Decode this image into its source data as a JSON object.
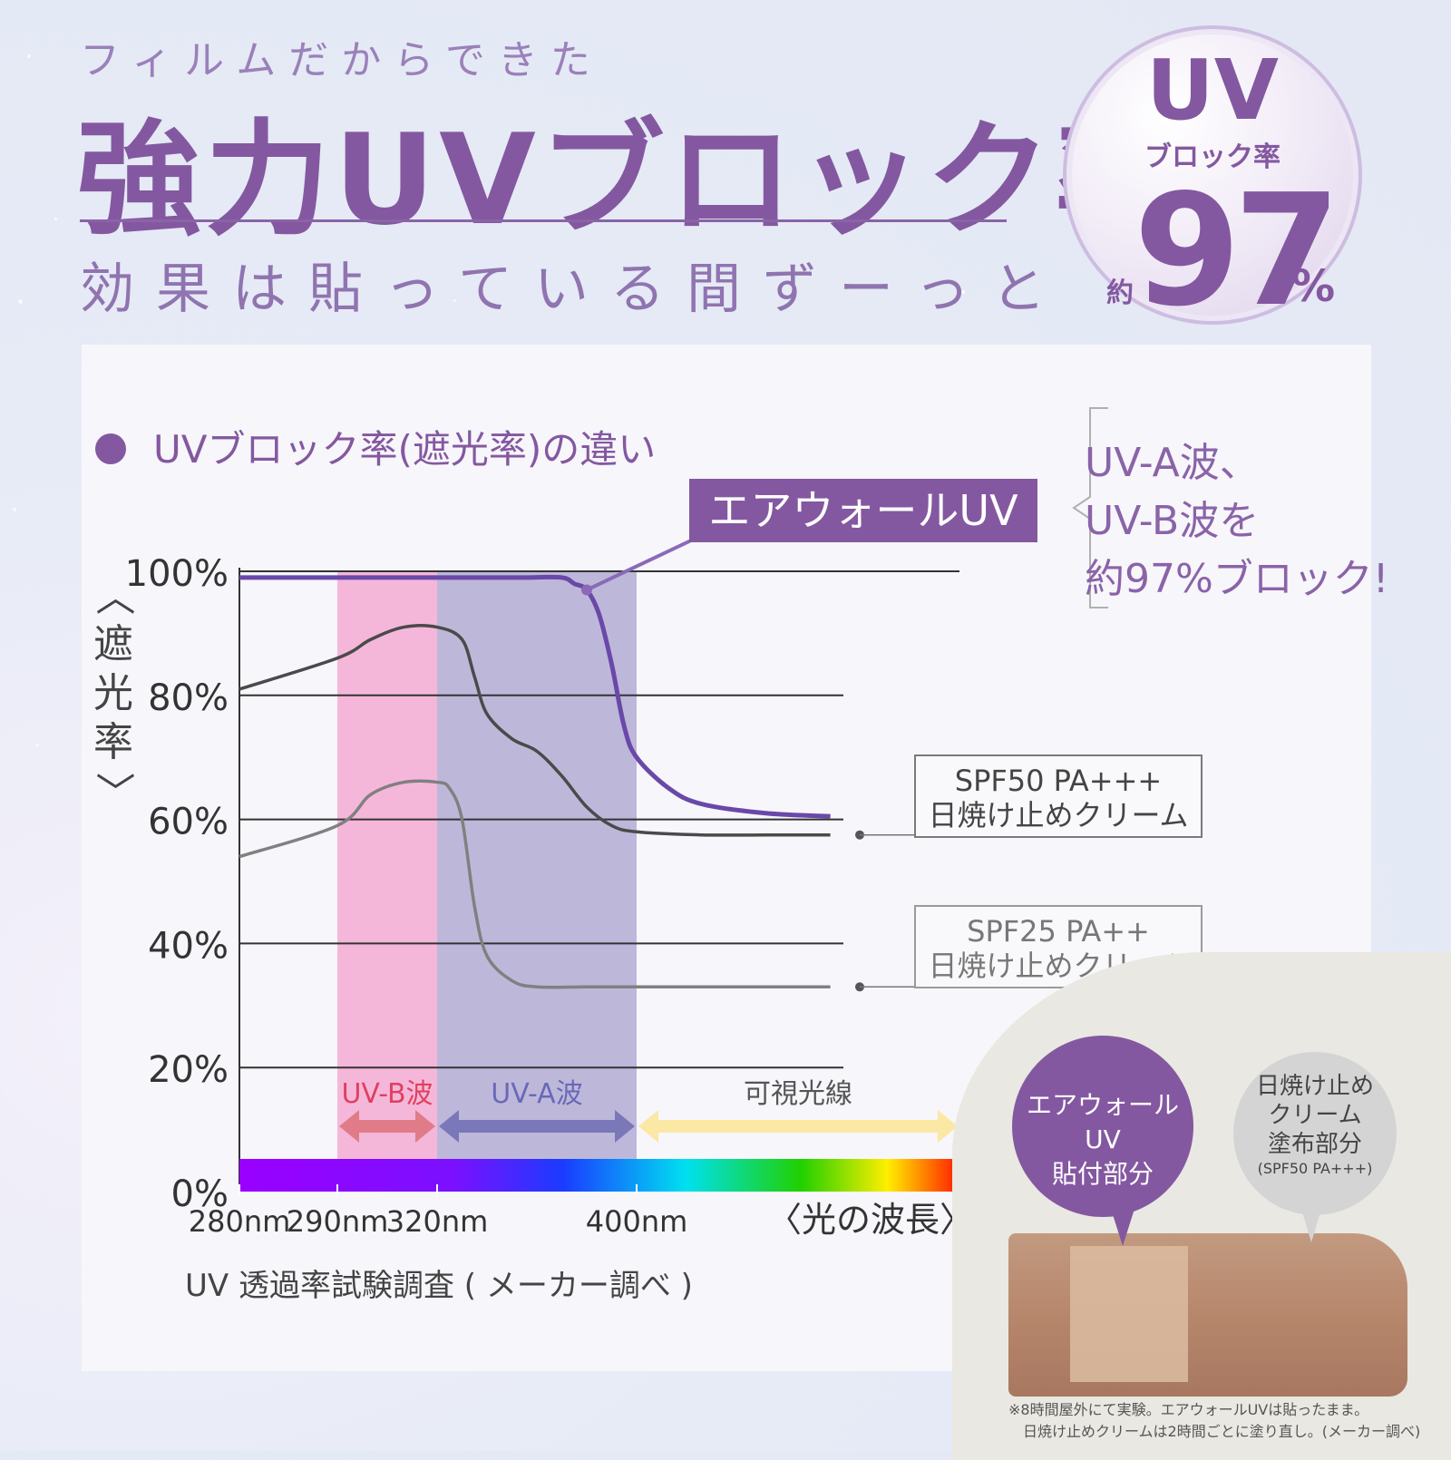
{
  "title": {
    "kicker": "フィルムだからできた",
    "headline": "強力UVブロック率",
    "sub": "効果は貼っている間ずーっと"
  },
  "badge": {
    "uv": "UV",
    "label": "ブロック率",
    "approx": "約",
    "number": "97",
    "percent": "%"
  },
  "chart_heading": "UVブロック率(遮光率)の違い",
  "airwall_tag": "エアウォールUV",
  "note": [
    "UV-A波、",
    "UV-B波を",
    "約97%ブロック!"
  ],
  "legend": {
    "spf50_line1": "SPF50 PA+++",
    "spf50_line2": "日焼け止めクリーム",
    "spf25_line1": "SPF25 PA++",
    "spf25_line2": "日焼け止めクリーム"
  },
  "y_axis_title": [
    "〈",
    "遮",
    "光",
    "率",
    "〉"
  ],
  "source": "UV 透過率試験調査 ( メーカー調べ )",
  "photo": {
    "bubble_airwall": [
      "エアウォールUV",
      "貼付部分"
    ],
    "bubble_cream": [
      "日焼け止め",
      "クリーム",
      "塗布部分"
    ],
    "bubble_cream_small": "(SPF50 PA+++)",
    "footnote": [
      "※8時間屋外にて実験。エアウォールUVは貼ったまま。",
      "　日焼け止めクリームは2時間ごとに塗り直し。(メーカー調べ)"
    ]
  },
  "colors": {
    "purple": "#8458a0",
    "airwall_line": "#6a48a8",
    "spf50_line": "#4a4a4a",
    "spf25_line": "#808080",
    "uvb_band": "#f5b7d9",
    "uva_band": "#bdb8da",
    "uvb_arrow": "#e07c88",
    "uva_arrow": "#7a78b8",
    "visible_arrow": "#fbe8a4"
  },
  "chart_data": {
    "type": "line",
    "title": "UVブロック率(遮光率)の違い",
    "xlabel": "〈光の波長〉",
    "ylabel": "〈遮光率〉",
    "y_ticks": [
      "0%",
      "20%",
      "40%",
      "60%",
      "80%",
      "100%"
    ],
    "ylim": [
      0,
      100
    ],
    "x_ticks": [
      "280nm",
      "290nm",
      "320nm",
      "400nm"
    ],
    "x_tick_values": [
      280,
      290,
      320,
      400
    ],
    "xlim": [
      280,
      500
    ],
    "bands": [
      {
        "label": "UV-B波",
        "from": 290,
        "to": 320
      },
      {
        "label": "UV-A波",
        "from": 320,
        "to": 400
      },
      {
        "label": "可視光線",
        "from": 400,
        "to": 500
      }
    ],
    "series": [
      {
        "name": "エアウォールUV",
        "x": [
          280,
          290,
          300,
          320,
          340,
          355,
          370,
          375,
          380,
          385,
          390,
          395,
          400,
          410,
          420,
          440,
          460
        ],
        "y": [
          99,
          99,
          99,
          99,
          99,
          99,
          99,
          98,
          97,
          93,
          85,
          75,
          70,
          65,
          62.5,
          61,
          60.5
        ]
      },
      {
        "name": "SPF50 PA+++ 日焼け止めクリーム",
        "x": [
          280,
          290,
          300,
          310,
          320,
          330,
          335,
          340,
          350,
          360,
          370,
          380,
          390,
          400,
          420,
          440,
          460
        ],
        "y": [
          81,
          86,
          89,
          91,
          91,
          89,
          83,
          77,
          73,
          71,
          67,
          62,
          59,
          58,
          57.5,
          57.5,
          57.5
        ]
      },
      {
        "name": "SPF25 PA++ 日焼け止めクリーム",
        "x": [
          280,
          290,
          300,
          310,
          320,
          325,
          330,
          335,
          340,
          350,
          360,
          380,
          400,
          420,
          440,
          460
        ],
        "y": [
          54,
          59,
          64,
          66,
          66,
          65,
          60,
          46,
          38,
          34,
          33,
          33,
          33,
          33,
          33,
          33
        ]
      }
    ]
  }
}
